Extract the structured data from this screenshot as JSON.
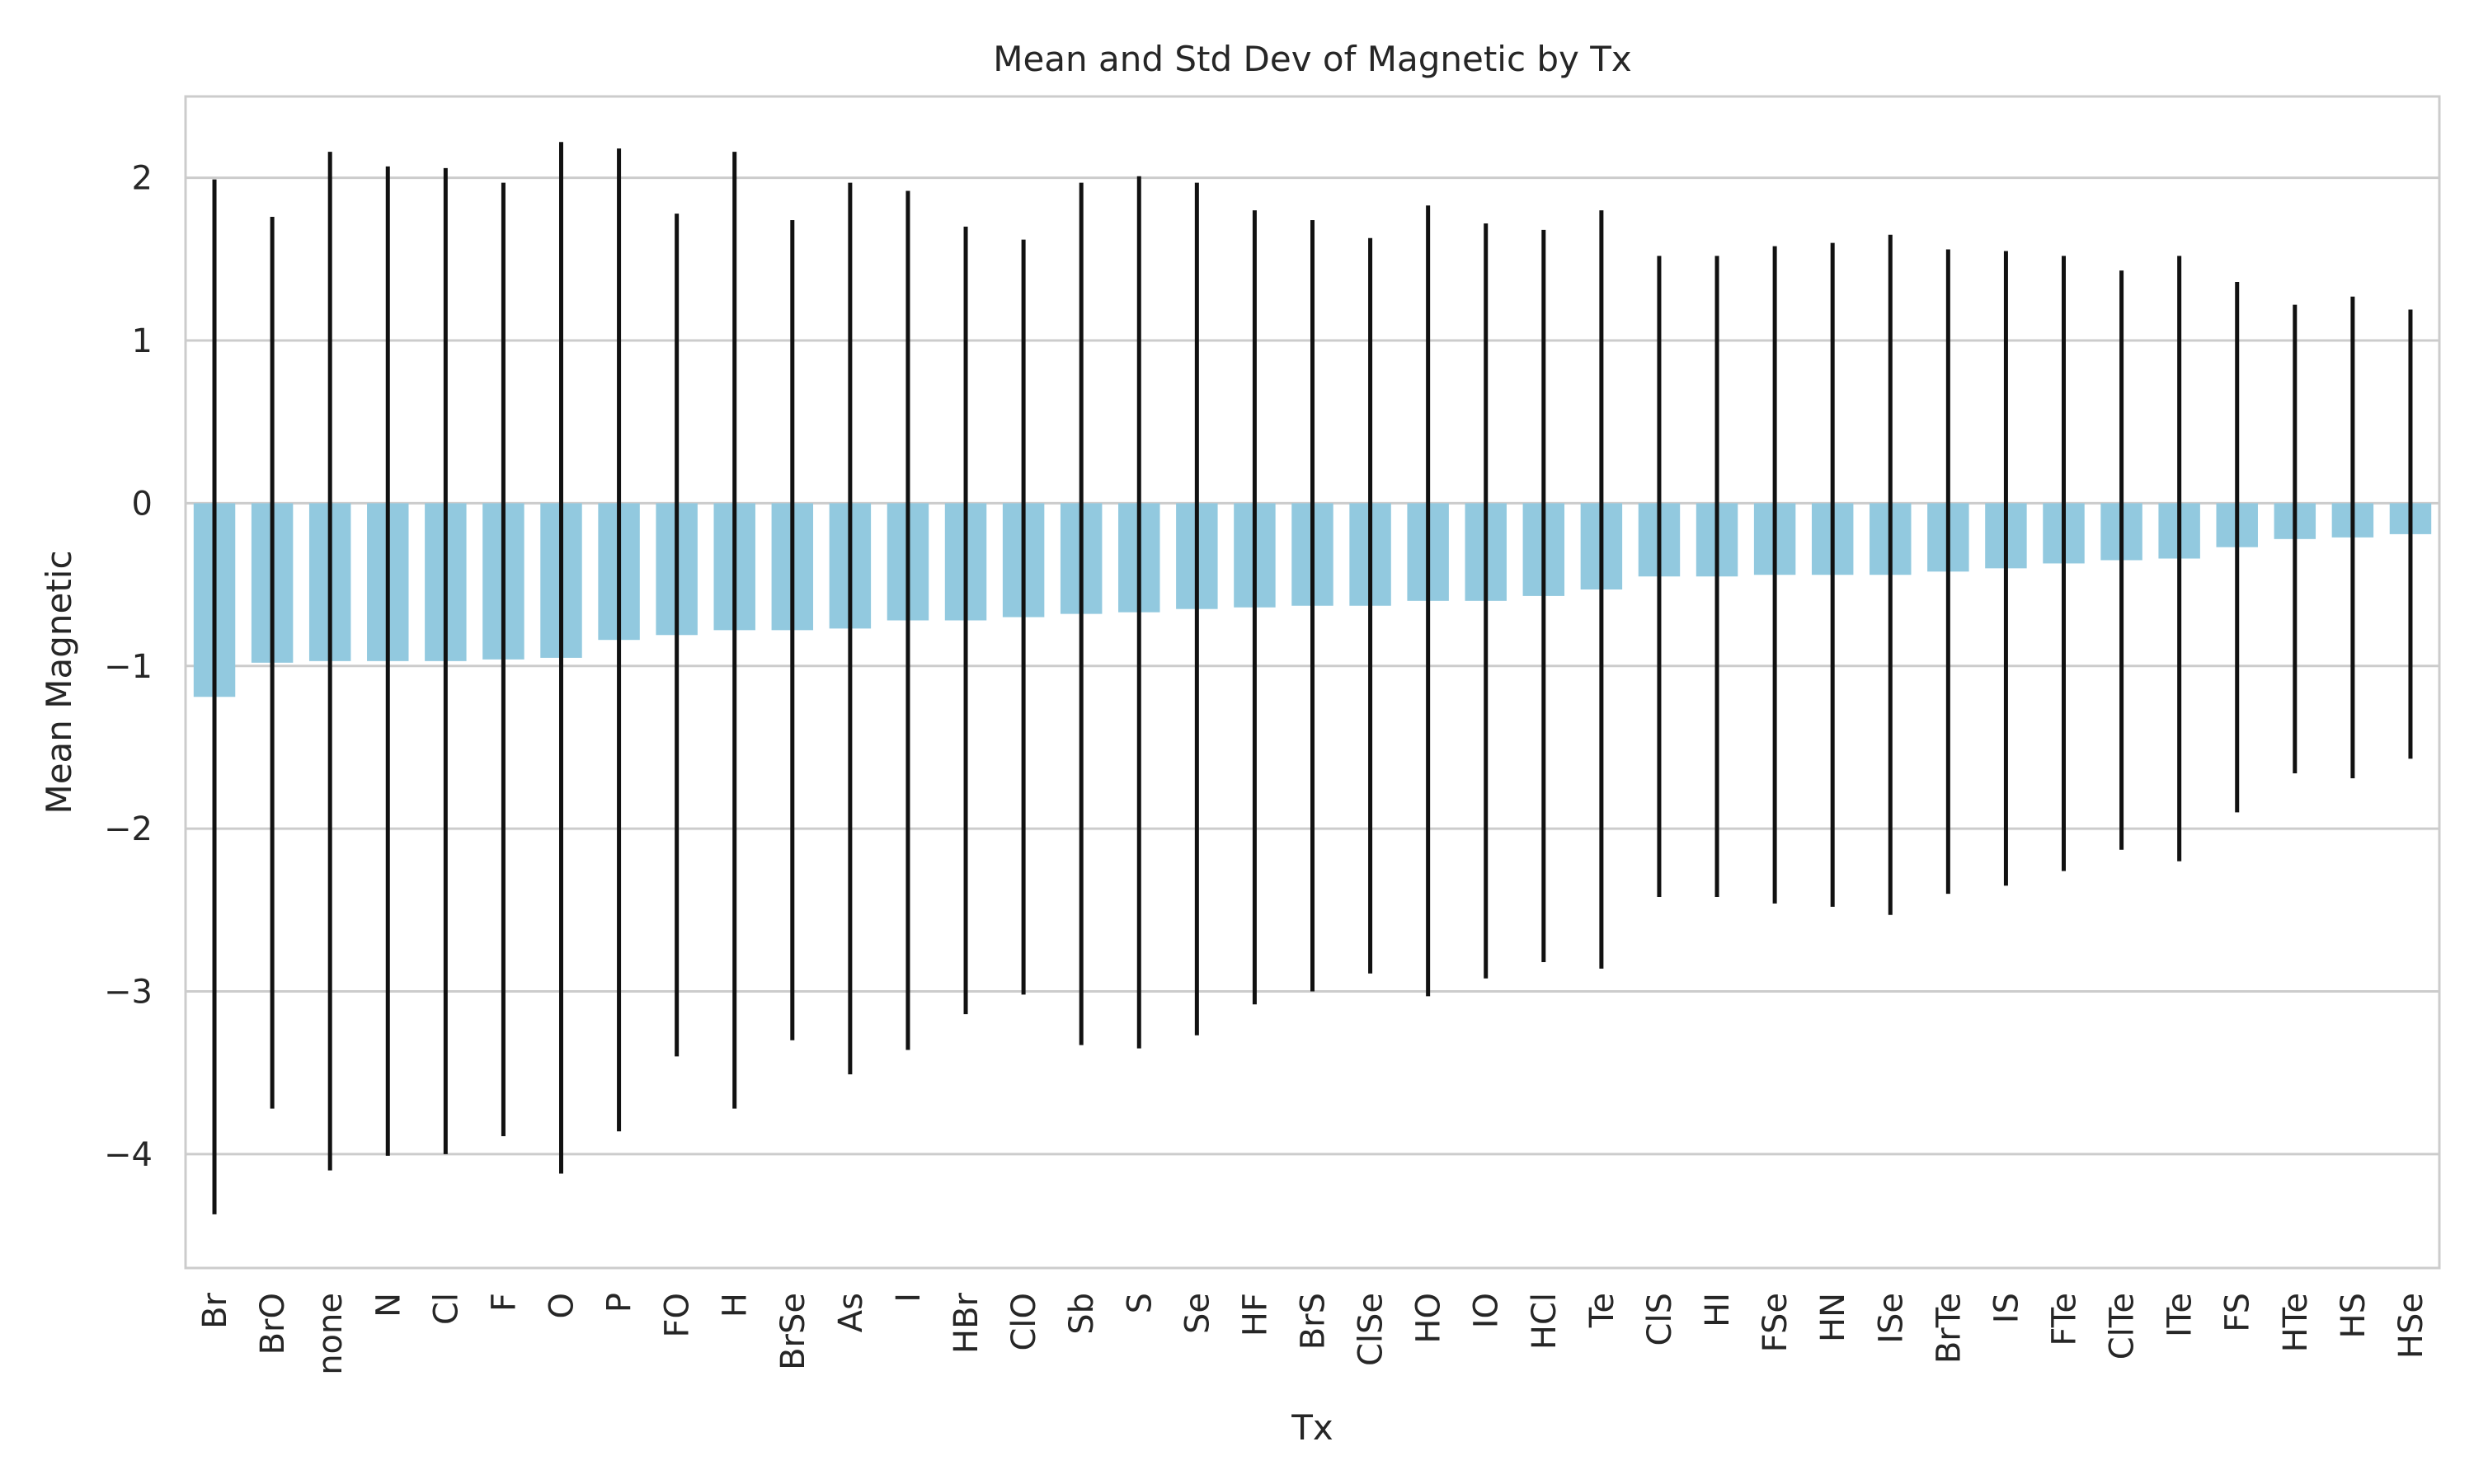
{
  "chart_data": {
    "type": "bar",
    "title": "Mean and Std Dev of Magnetic by Tx",
    "xlabel": "Tx",
    "ylabel": "Mean Magnetic",
    "ylim": [
      -4.7,
      2.5
    ],
    "yticks": [
      -4,
      -3,
      -2,
      -1,
      0,
      1,
      2
    ],
    "grid": true,
    "legend": "none",
    "colors": {
      "bar": "#92c9df",
      "errorbar": "#111111",
      "grid": "#cccccc",
      "frame": "#cccccc"
    },
    "categories": [
      "Br",
      "BrO",
      "none",
      "N",
      "Cl",
      "F",
      "O",
      "P",
      "FO",
      "H",
      "BrSe",
      "As",
      "I",
      "HBr",
      "ClO",
      "Sb",
      "S",
      "Se",
      "HF",
      "BrS",
      "ClSe",
      "HO",
      "IO",
      "HCl",
      "Te",
      "ClS",
      "HI",
      "FSe",
      "HN",
      "ISe",
      "BrTe",
      "IS",
      "FTe",
      "ClTe",
      "ITe",
      "FS",
      "HTe",
      "HS",
      "HSe"
    ],
    "values": [
      -1.19,
      -0.98,
      -0.97,
      -0.97,
      -0.97,
      -0.96,
      -0.95,
      -0.84,
      -0.81,
      -0.78,
      -0.78,
      -0.77,
      -0.72,
      -0.72,
      -0.7,
      -0.68,
      -0.67,
      -0.65,
      -0.64,
      -0.63,
      -0.63,
      -0.6,
      -0.6,
      -0.57,
      -0.53,
      -0.45,
      -0.45,
      -0.44,
      -0.44,
      -0.44,
      -0.42,
      -0.4,
      -0.37,
      -0.35,
      -0.34,
      -0.27,
      -0.22,
      -0.21,
      -0.19
    ],
    "std": [
      3.18,
      2.74,
      3.13,
      3.04,
      3.03,
      2.93,
      3.17,
      3.02,
      2.59,
      2.94,
      2.52,
      2.74,
      2.64,
      2.42,
      2.32,
      2.65,
      2.68,
      2.62,
      2.44,
      2.37,
      2.26,
      2.43,
      2.32,
      2.25,
      2.33,
      1.97,
      1.97,
      2.02,
      2.04,
      2.09,
      1.98,
      1.95,
      1.89,
      1.78,
      1.86,
      1.63,
      1.44,
      1.48,
      1.38
    ]
  }
}
